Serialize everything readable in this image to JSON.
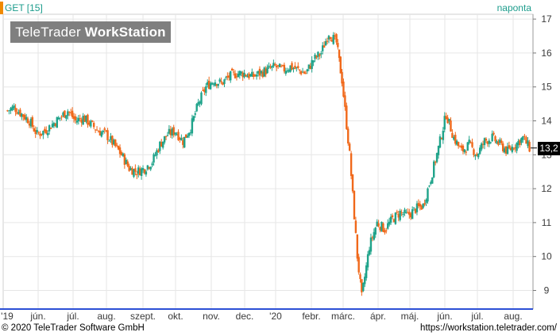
{
  "header": {
    "symbol": "GET [15]",
    "period": "naponta"
  },
  "logo": {
    "part1": "TeleTrader ",
    "part2": "WorkStation"
  },
  "last_value_label": "13,2",
  "footer": {
    "copyright": "© 2020 TeleTrader Software GmbH",
    "url": "https://workstation.teletrader.com/"
  },
  "colors": {
    "up": "#1fa38a",
    "down": "#f0681a",
    "grid": "#e6e6e6",
    "axis": "#2c4fd6",
    "brand": "#1c9c8c"
  },
  "chart_data": {
    "type": "candlestick",
    "y_ticks": [
      "9",
      "10",
      "11",
      "12",
      "13",
      "14",
      "15",
      "16",
      "17"
    ],
    "ylim": [
      8.6,
      17.3
    ],
    "x_labels": [
      "'19",
      "jún.",
      "júl.",
      "aug.",
      "szept.",
      "okt.",
      "nov.",
      "dec.",
      "'20",
      "febr.",
      "márc.",
      "ápr.",
      "máj.",
      "jún.",
      "júl.",
      "aug."
    ],
    "grid": true,
    "last_value": 13.2,
    "close_series": [
      [
        "2019-05-02",
        14.3
      ],
      [
        "2019-05-08",
        14.4
      ],
      [
        "2019-05-15",
        14.2
      ],
      [
        "2019-05-22",
        14.0
      ],
      [
        "2019-05-29",
        13.6
      ],
      [
        "2019-06-05",
        13.7
      ],
      [
        "2019-06-12",
        13.9
      ],
      [
        "2019-06-19",
        14.1
      ],
      [
        "2019-06-26",
        14.3
      ],
      [
        "2019-07-03",
        14.0
      ],
      [
        "2019-07-10",
        14.1
      ],
      [
        "2019-07-17",
        13.9
      ],
      [
        "2019-07-24",
        13.7
      ],
      [
        "2019-07-31",
        13.6
      ],
      [
        "2019-08-07",
        13.3
      ],
      [
        "2019-08-14",
        13.0
      ],
      [
        "2019-08-21",
        12.6
      ],
      [
        "2019-08-28",
        12.5
      ],
      [
        "2019-09-04",
        12.6
      ],
      [
        "2019-09-11",
        12.8
      ],
      [
        "2019-09-18",
        13.3
      ],
      [
        "2019-09-25",
        13.6
      ],
      [
        "2019-10-02",
        13.7
      ],
      [
        "2019-10-09",
        13.4
      ],
      [
        "2019-10-16",
        13.8
      ],
      [
        "2019-10-23",
        14.5
      ],
      [
        "2019-10-30",
        15.0
      ],
      [
        "2019-11-06",
        15.2
      ],
      [
        "2019-11-13",
        15.1
      ],
      [
        "2019-11-20",
        15.3
      ],
      [
        "2019-11-27",
        15.4
      ],
      [
        "2019-12-04",
        15.4
      ],
      [
        "2019-12-11",
        15.3
      ],
      [
        "2019-12-18",
        15.4
      ],
      [
        "2019-12-25",
        15.5
      ],
      [
        "2020-01-01",
        15.6
      ],
      [
        "2020-01-08",
        15.5
      ],
      [
        "2020-01-15",
        15.6
      ],
      [
        "2020-01-22",
        15.5
      ],
      [
        "2020-01-29",
        15.4
      ],
      [
        "2020-02-05",
        15.8
      ],
      [
        "2020-02-12",
        16.0
      ],
      [
        "2020-02-19",
        16.6
      ],
      [
        "2020-02-26",
        16.3
      ],
      [
        "2020-03-02",
        15.2
      ],
      [
        "2020-03-09",
        13.0
      ],
      [
        "2020-03-16",
        10.0
      ],
      [
        "2020-03-20",
        8.8
      ],
      [
        "2020-03-27",
        10.3
      ],
      [
        "2020-04-03",
        11.0
      ],
      [
        "2020-04-10",
        10.8
      ],
      [
        "2020-04-17",
        11.1
      ],
      [
        "2020-04-24",
        11.3
      ],
      [
        "2020-05-01",
        11.2
      ],
      [
        "2020-05-08",
        11.4
      ],
      [
        "2020-05-15",
        11.5
      ],
      [
        "2020-05-22",
        12.3
      ],
      [
        "2020-05-29",
        13.2
      ],
      [
        "2020-06-05",
        14.2
      ],
      [
        "2020-06-12",
        13.5
      ],
      [
        "2020-06-19",
        13.1
      ],
      [
        "2020-06-26",
        13.3
      ],
      [
        "2020-07-03",
        13.0
      ],
      [
        "2020-07-10",
        13.4
      ],
      [
        "2020-07-17",
        13.5
      ],
      [
        "2020-07-24",
        13.3
      ],
      [
        "2020-07-31",
        13.1
      ],
      [
        "2020-08-07",
        13.3
      ],
      [
        "2020-08-14",
        13.5
      ],
      [
        "2020-08-20",
        13.2
      ]
    ]
  }
}
